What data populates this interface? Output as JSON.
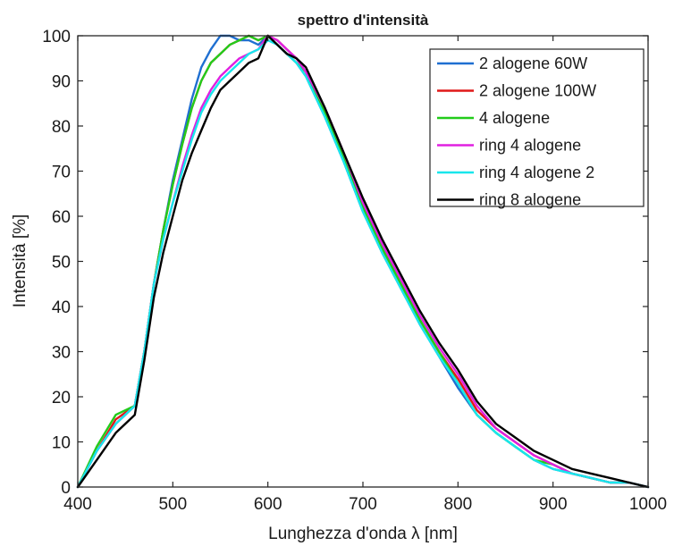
{
  "chart_data": {
    "type": "line",
    "title": "spettro d'intensità",
    "xlabel": "Lunghezza d'onda λ [nm]",
    "ylabel": "Intensità [%]",
    "xlim": [
      400,
      1000
    ],
    "ylim": [
      0,
      100
    ],
    "xticks": [
      400,
      500,
      600,
      700,
      800,
      900,
      1000
    ],
    "yticks": [
      0,
      10,
      20,
      30,
      40,
      50,
      60,
      70,
      80,
      90,
      100
    ],
    "grid": false,
    "legend_position": "top-right",
    "x": [
      400,
      420,
      440,
      460,
      470,
      480,
      490,
      500,
      510,
      520,
      530,
      540,
      550,
      560,
      570,
      580,
      590,
      600,
      610,
      620,
      630,
      640,
      660,
      680,
      700,
      720,
      740,
      760,
      780,
      800,
      820,
      840,
      860,
      880,
      900,
      920,
      940,
      960,
      980,
      1000
    ],
    "series": [
      {
        "name": "2 alogene 60W",
        "color": "#1f6fd1",
        "values": [
          0,
          8,
          14,
          18,
          30,
          45,
          57,
          68,
          77,
          86,
          93,
          97,
          100,
          100,
          99,
          99,
          98,
          100,
          98,
          96,
          94,
          91,
          82,
          72,
          61,
          52,
          44,
          36,
          29,
          22,
          16,
          12,
          9,
          6,
          4,
          3,
          2,
          1,
          1,
          0
        ]
      },
      {
        "name": "2 alogene 100W",
        "color": "#e01919",
        "values": [
          0,
          8,
          15,
          18,
          30,
          45,
          57,
          67,
          76,
          84,
          90,
          94,
          96,
          98,
          99,
          100,
          99,
          100,
          99,
          97,
          95,
          92,
          83,
          73,
          62,
          53,
          45,
          37,
          30,
          24,
          17,
          13,
          10,
          7,
          5,
          3,
          2,
          1,
          1,
          0
        ]
      },
      {
        "name": "4 alogene",
        "color": "#22cc1a",
        "values": [
          0,
          9,
          16,
          18,
          30,
          45,
          57,
          67,
          76,
          84,
          90,
          94,
          96,
          98,
          99,
          100,
          99,
          100,
          98,
          96,
          94,
          92,
          83,
          73,
          62,
          53,
          45,
          37,
          30,
          23,
          16,
          12,
          9,
          6,
          5,
          3,
          2,
          1,
          1,
          0
        ]
      },
      {
        "name": "ring 4 alogene",
        "color": "#e020e0",
        "values": [
          0,
          8,
          14,
          18,
          30,
          45,
          55,
          63,
          71,
          78,
          84,
          88,
          91,
          93,
          95,
          96,
          97,
          100,
          99,
          97,
          95,
          92,
          84,
          74,
          63,
          54,
          46,
          38,
          31,
          25,
          18,
          13,
          10,
          7,
          5,
          3,
          2,
          1,
          1,
          0
        ]
      },
      {
        "name": "ring 4 alogene 2",
        "color": "#18e6ec",
        "values": [
          0,
          8,
          14,
          18,
          30,
          45,
          55,
          63,
          70,
          77,
          83,
          87,
          90,
          92,
          94,
          96,
          97,
          99,
          98,
          96,
          94,
          91,
          82,
          72,
          61,
          52,
          44,
          36,
          29,
          23,
          16,
          12,
          9,
          6,
          4,
          3,
          2,
          1,
          1,
          0
        ]
      },
      {
        "name": "ring 8 alogene",
        "color": "#000000",
        "values": [
          0,
          6,
          12,
          16,
          28,
          42,
          52,
          60,
          68,
          74,
          79,
          84,
          88,
          90,
          92,
          94,
          95,
          100,
          98,
          96,
          95,
          93,
          84,
          74,
          64,
          55,
          47,
          39,
          32,
          26,
          19,
          14,
          11,
          8,
          6,
          4,
          3,
          2,
          1,
          0
        ]
      }
    ]
  }
}
